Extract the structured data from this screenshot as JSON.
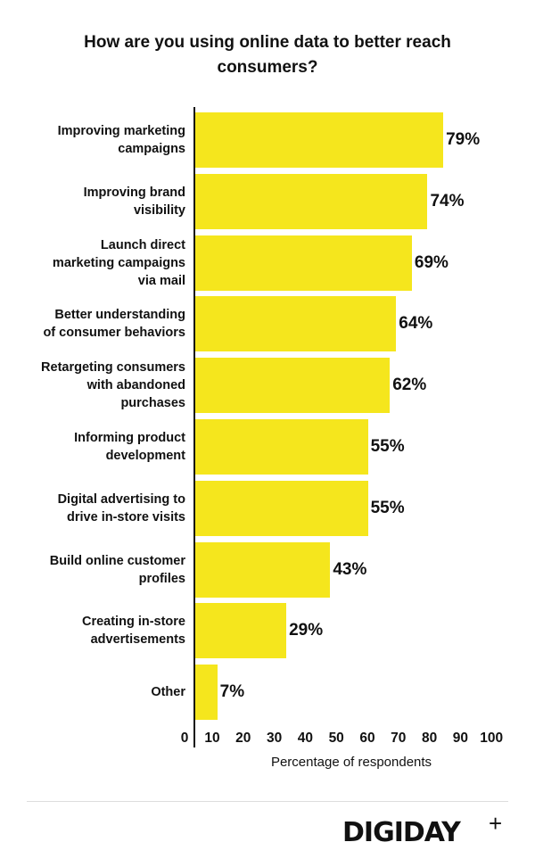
{
  "chart_data": {
    "type": "bar",
    "orientation": "horizontal",
    "title": "How are you using online data to better reach consumers?",
    "xlabel": "Percentage of respondents",
    "ylabel": "",
    "xlim": [
      0,
      100
    ],
    "xticks": [
      "0",
      "10",
      "20",
      "30",
      "40",
      "50",
      "60",
      "70",
      "80",
      "90",
      "100"
    ],
    "grid": false,
    "bar_color": "#f5e61d",
    "categories": [
      "Improving marketing campaigns",
      "Improving brand visibility",
      "Launch direct marketing campaigns via mail",
      "Better understanding of consumer behaviors",
      "Retargeting consumers with abandoned purchases",
      "Informing product development",
      "Digital advertising to drive in-store visits",
      "Build online customer profiles",
      "Creating in-store advertisements",
      "Other"
    ],
    "values": [
      79,
      74,
      69,
      64,
      62,
      55,
      55,
      43,
      29,
      7
    ],
    "data_labels": [
      "79%",
      "74%",
      "69%",
      "64%",
      "62%",
      "55%",
      "55%",
      "43%",
      "29%",
      "7%"
    ]
  },
  "brand": {
    "logo": "DIGIDAY+"
  }
}
